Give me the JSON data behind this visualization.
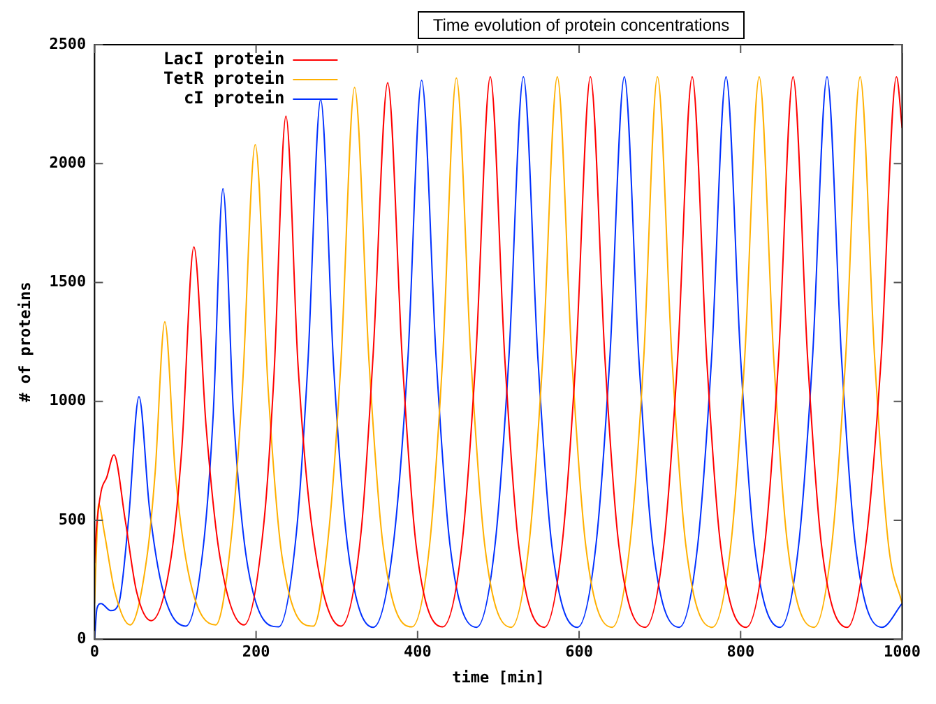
{
  "chart_data": {
    "type": "line",
    "title": "Time evolution of protein concentrations",
    "xlabel": "time [min]",
    "ylabel": "# of proteins",
    "xlim": [
      0,
      1000
    ],
    "xticks": [
      0,
      200,
      400,
      600,
      800,
      1000
    ],
    "ylim": [
      0,
      2500
    ],
    "yticks": [
      0,
      500,
      1000,
      1500,
      2000,
      2500
    ],
    "grid": false,
    "legend": "top left",
    "marker": "none",
    "line_style": "solid",
    "series": [
      {
        "name": "LacI protein",
        "color": "#ff0000",
        "x": [
          0,
          2,
          8,
          15,
          24,
          38,
          52,
          70,
          95,
          108,
          123,
          138,
          155,
          185,
          210,
          222,
          237,
          252,
          270,
          305,
          330,
          345,
          363,
          381,
          398,
          431,
          455,
          472,
          490,
          508,
          525,
          557,
          579,
          596,
          614,
          632,
          649,
          682,
          705,
          722,
          740,
          758,
          775,
          807,
          830,
          847,
          865,
          883,
          900,
          932,
          955,
          974,
          993,
          1000
        ],
        "values": [
          320,
          450,
          620,
          680,
          775,
          500,
          200,
          78,
          350,
          800,
          1650,
          900,
          350,
          60,
          500,
          1100,
          2200,
          1150,
          450,
          55,
          450,
          1200,
          2340,
          1180,
          400,
          52,
          400,
          1180,
          2365,
          1180,
          400,
          50,
          400,
          1180,
          2365,
          1180,
          400,
          50,
          400,
          1180,
          2365,
          1180,
          400,
          50,
          400,
          1180,
          2365,
          1180,
          400,
          50,
          400,
          1180,
          2365,
          2150
        ]
      },
      {
        "name": "TetR protein",
        "color": "#ffb000",
        "x": [
          0,
          2,
          5,
          12,
          25,
          44,
          65,
          75,
          87,
          100,
          118,
          150,
          170,
          183,
          199,
          215,
          232,
          271,
          290,
          305,
          322,
          340,
          357,
          393,
          415,
          431,
          448,
          466,
          483,
          516,
          538,
          555,
          573,
          591,
          608,
          641,
          663,
          680,
          697,
          715,
          732,
          765,
          788,
          805,
          823,
          841,
          858,
          891,
          913,
          930,
          948,
          966,
          983,
          1000
        ],
        "values": [
          150,
          350,
          570,
          450,
          200,
          60,
          350,
          700,
          1335,
          700,
          250,
          60,
          450,
          1050,
          2080,
          1050,
          350,
          55,
          450,
          1160,
          2320,
          1160,
          400,
          52,
          400,
          1180,
          2360,
          1180,
          400,
          50,
          400,
          1180,
          2365,
          1180,
          400,
          50,
          400,
          1180,
          2365,
          1180,
          400,
          50,
          400,
          1180,
          2365,
          1180,
          400,
          50,
          400,
          1180,
          2365,
          1180,
          400,
          150
        ]
      },
      {
        "name": "cI protein",
        "color": "#0030ff",
        "x": [
          0,
          3,
          8,
          20,
          30,
          42,
          55,
          68,
          85,
          113,
          135,
          147,
          159,
          172,
          190,
          228,
          250,
          264,
          280,
          296,
          313,
          345,
          370,
          388,
          405,
          423,
          440,
          473,
          496,
          513,
          531,
          549,
          566,
          598,
          621,
          638,
          656,
          674,
          691,
          724,
          747,
          764,
          782,
          800,
          817,
          849,
          872,
          889,
          907,
          925,
          942,
          975,
          1000
        ],
        "values": [
          0,
          130,
          150,
          120,
          150,
          500,
          1020,
          550,
          200,
          55,
          400,
          950,
          1895,
          950,
          300,
          52,
          450,
          1150,
          2270,
          1150,
          400,
          50,
          400,
          1180,
          2350,
          1180,
          400,
          50,
          400,
          1180,
          2365,
          1180,
          400,
          50,
          400,
          1180,
          2365,
          1180,
          400,
          50,
          400,
          1180,
          2365,
          1180,
          400,
          50,
          400,
          1180,
          2365,
          1180,
          400,
          50,
          150
        ]
      }
    ]
  }
}
